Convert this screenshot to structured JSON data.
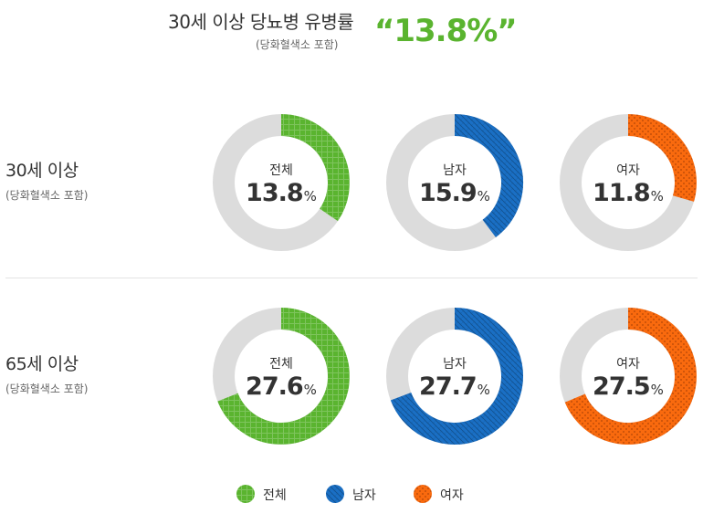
{
  "header": {
    "title": "30세 이상 당뇨병 유병률",
    "subtitle": "(당화혈색소 포함)",
    "value": "“13.8%”"
  },
  "colors": {
    "total": "#5ab42f",
    "male": "#1a6fc4",
    "female": "#f96a0e",
    "track": "#dcdcdc"
  },
  "chart_data": {
    "type": "pie",
    "unit": "%",
    "categories": [
      "전체",
      "남자",
      "여자"
    ],
    "groups": [
      {
        "label": "30세 이상",
        "sublabel": "(당화혈색소 포함)",
        "values": [
          13.8,
          15.9,
          11.8
        ],
        "value_labels": [
          "13.8",
          "15.9",
          "11.8"
        ]
      },
      {
        "label": "65세 이상",
        "sublabel": "(당화혈색소 포함)",
        "values": [
          27.6,
          27.7,
          27.5
        ],
        "value_labels": [
          "27.6",
          "27.7",
          "27.5"
        ]
      }
    ],
    "display_scale_max": 40,
    "legend": {
      "placement": "bottom",
      "entries": [
        {
          "label": "전체",
          "color": "#5ab42f",
          "pattern": "grid"
        },
        {
          "label": "남자",
          "color": "#1a6fc4",
          "pattern": "diagonal"
        },
        {
          "label": "여자",
          "color": "#f96a0e",
          "pattern": "dots"
        }
      ]
    }
  }
}
